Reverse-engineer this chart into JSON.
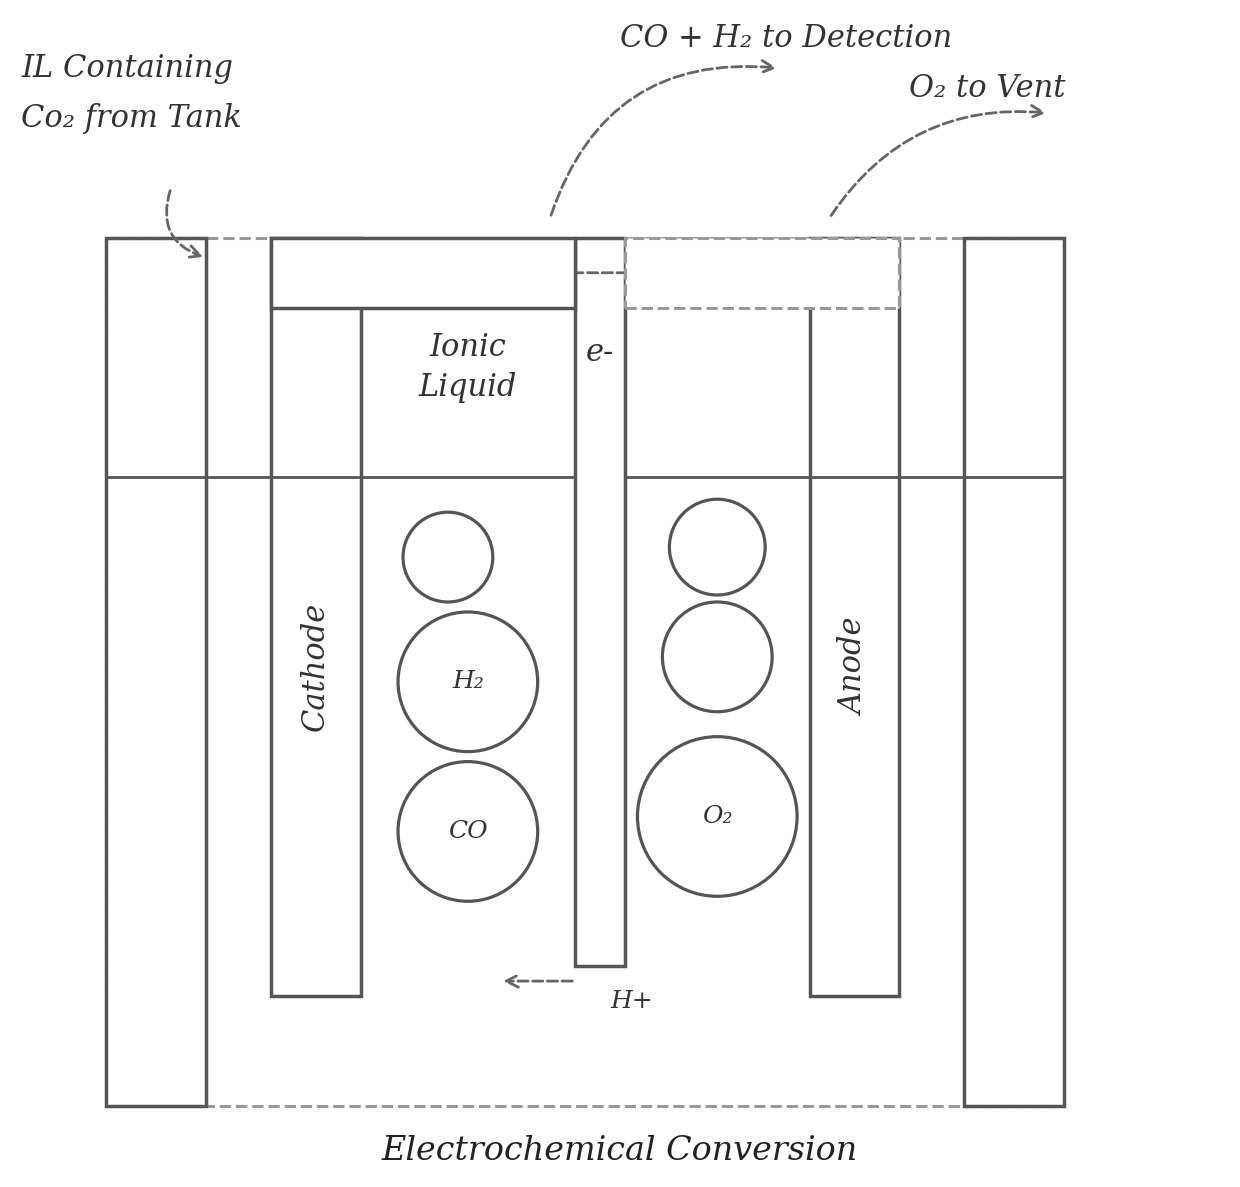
{
  "title": "Electrochemical Conversion",
  "title_fontsize": 24,
  "bg_color": "#ffffff",
  "line_color": "#555555",
  "line_width": 2.5,
  "labels": {
    "il_containing_1": "IL Containing",
    "il_containing_2": "Co₂ from Tank",
    "co_h2_detection": "CO + H₂ to Detection",
    "o2_vent": "O₂ to Vent",
    "cathode": "Cathode",
    "anode": "Anode",
    "ionic_liquid": "Ionic\nLiquid",
    "h2": "H₂",
    "co": "CO",
    "o2": "O₂",
    "e_minus": "e-",
    "h_plus": "H+"
  },
  "font_size": 20,
  "small_font": 18,
  "label_font": 22
}
